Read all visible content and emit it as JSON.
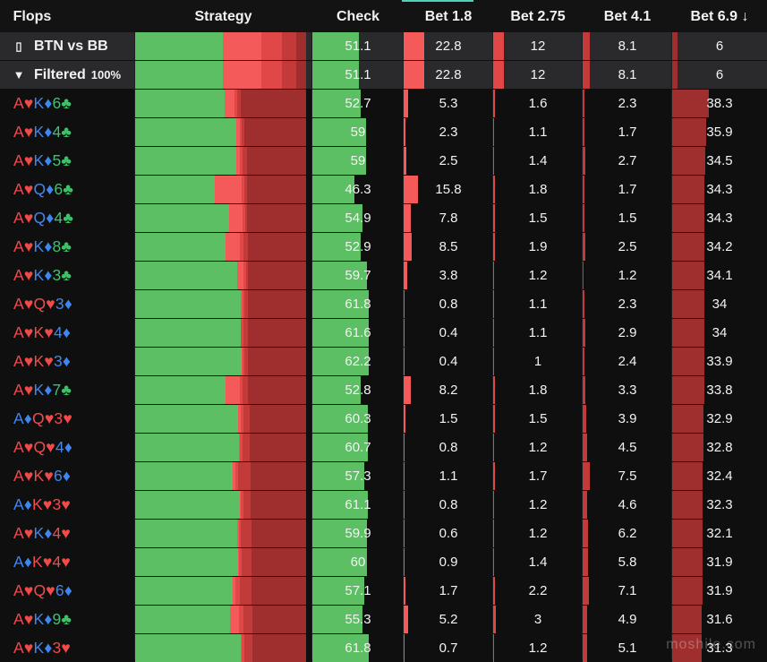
{
  "headers": {
    "flops": "Flops",
    "strategy": "Strategy",
    "check": "Check",
    "bet18": "Bet 1.8",
    "bet275": "Bet 2.75",
    "bet41": "Bet 4.1",
    "bet69": "Bet 6.9 ↓"
  },
  "summary": [
    {
      "label": "BTN vs BB",
      "pct": "",
      "icon": "bookmark-icon",
      "check": "51.1",
      "b18": "22.8",
      "b275": "12",
      "b41": "8.1",
      "b69": "6"
    },
    {
      "label": "Filtered",
      "pct": "100%",
      "icon": "filter-icon",
      "check": "51.1",
      "b18": "22.8",
      "b275": "12",
      "b41": "8.1",
      "b69": "6"
    }
  ],
  "rows": [
    {
      "cards": [
        [
          "A",
          "♥"
        ],
        [
          "K",
          "♦"
        ],
        [
          "6",
          "♣"
        ]
      ],
      "check": "52.7",
      "b18": "5.3",
      "b275": "1.6",
      "b41": "2.3",
      "b69": "38.3"
    },
    {
      "cards": [
        [
          "A",
          "♥"
        ],
        [
          "K",
          "♦"
        ],
        [
          "4",
          "♣"
        ]
      ],
      "check": "59",
      "b18": "2.3",
      "b275": "1.1",
      "b41": "1.7",
      "b69": "35.9"
    },
    {
      "cards": [
        [
          "A",
          "♥"
        ],
        [
          "K",
          "♦"
        ],
        [
          "5",
          "♣"
        ]
      ],
      "check": "59",
      "b18": "2.5",
      "b275": "1.4",
      "b41": "2.7",
      "b69": "34.5"
    },
    {
      "cards": [
        [
          "A",
          "♥"
        ],
        [
          "Q",
          "♦"
        ],
        [
          "6",
          "♣"
        ]
      ],
      "check": "46.3",
      "b18": "15.8",
      "b275": "1.8",
      "b41": "1.7",
      "b69": "34.3"
    },
    {
      "cards": [
        [
          "A",
          "♥"
        ],
        [
          "Q",
          "♦"
        ],
        [
          "4",
          "♣"
        ]
      ],
      "check": "54.9",
      "b18": "7.8",
      "b275": "1.5",
      "b41": "1.5",
      "b69": "34.3"
    },
    {
      "cards": [
        [
          "A",
          "♥"
        ],
        [
          "K",
          "♦"
        ],
        [
          "8",
          "♣"
        ]
      ],
      "check": "52.9",
      "b18": "8.5",
      "b275": "1.9",
      "b41": "2.5",
      "b69": "34.2"
    },
    {
      "cards": [
        [
          "A",
          "♥"
        ],
        [
          "K",
          "♦"
        ],
        [
          "3",
          "♣"
        ]
      ],
      "check": "59.7",
      "b18": "3.8",
      "b275": "1.2",
      "b41": "1.2",
      "b69": "34.1"
    },
    {
      "cards": [
        [
          "A",
          "♥"
        ],
        [
          "Q",
          "♥"
        ],
        [
          "3",
          "♦"
        ]
      ],
      "check": "61.8",
      "b18": "0.8",
      "b275": "1.1",
      "b41": "2.3",
      "b69": "34"
    },
    {
      "cards": [
        [
          "A",
          "♥"
        ],
        [
          "K",
          "♥"
        ],
        [
          "4",
          "♦"
        ]
      ],
      "check": "61.6",
      "b18": "0.4",
      "b275": "1.1",
      "b41": "2.9",
      "b69": "34"
    },
    {
      "cards": [
        [
          "A",
          "♥"
        ],
        [
          "K",
          "♥"
        ],
        [
          "3",
          "♦"
        ]
      ],
      "check": "62.2",
      "b18": "0.4",
      "b275": "1",
      "b41": "2.4",
      "b69": "33.9"
    },
    {
      "cards": [
        [
          "A",
          "♥"
        ],
        [
          "K",
          "♦"
        ],
        [
          "7",
          "♣"
        ]
      ],
      "check": "52.8",
      "b18": "8.2",
      "b275": "1.8",
      "b41": "3.3",
      "b69": "33.8"
    },
    {
      "cards": [
        [
          "A",
          "♦"
        ],
        [
          "Q",
          "♥"
        ],
        [
          "3",
          "♥"
        ]
      ],
      "check": "60.3",
      "b18": "1.5",
      "b275": "1.5",
      "b41": "3.9",
      "b69": "32.9"
    },
    {
      "cards": [
        [
          "A",
          "♥"
        ],
        [
          "Q",
          "♥"
        ],
        [
          "4",
          "♦"
        ]
      ],
      "check": "60.7",
      "b18": "0.8",
      "b275": "1.2",
      "b41": "4.5",
      "b69": "32.8"
    },
    {
      "cards": [
        [
          "A",
          "♥"
        ],
        [
          "K",
          "♥"
        ],
        [
          "6",
          "♦"
        ]
      ],
      "check": "57.3",
      "b18": "1.1",
      "b275": "1.7",
      "b41": "7.5",
      "b69": "32.4"
    },
    {
      "cards": [
        [
          "A",
          "♦"
        ],
        [
          "K",
          "♥"
        ],
        [
          "3",
          "♥"
        ]
      ],
      "check": "61.1",
      "b18": "0.8",
      "b275": "1.2",
      "b41": "4.6",
      "b69": "32.3"
    },
    {
      "cards": [
        [
          "A",
          "♥"
        ],
        [
          "K",
          "♦"
        ],
        [
          "4",
          "♥"
        ]
      ],
      "check": "59.9",
      "b18": "0.6",
      "b275": "1.2",
      "b41": "6.2",
      "b69": "32.1"
    },
    {
      "cards": [
        [
          "A",
          "♦"
        ],
        [
          "K",
          "♥"
        ],
        [
          "4",
          "♥"
        ]
      ],
      "check": "60",
      "b18": "0.9",
      "b275": "1.4",
      "b41": "5.8",
      "b69": "31.9"
    },
    {
      "cards": [
        [
          "A",
          "♥"
        ],
        [
          "Q",
          "♥"
        ],
        [
          "6",
          "♦"
        ]
      ],
      "check": "57.1",
      "b18": "1.7",
      "b275": "2.2",
      "b41": "7.1",
      "b69": "31.9"
    },
    {
      "cards": [
        [
          "A",
          "♥"
        ],
        [
          "K",
          "♦"
        ],
        [
          "9",
          "♣"
        ]
      ],
      "check": "55.3",
      "b18": "5.2",
      "b275": "3",
      "b41": "4.9",
      "b69": "31.6"
    },
    {
      "cards": [
        [
          "A",
          "♥"
        ],
        [
          "K",
          "♦"
        ],
        [
          "3",
          "♥"
        ]
      ],
      "check": "61.8",
      "b18": "0.7",
      "b275": "1.2",
      "b41": "5.1",
      "b69": "31.3"
    }
  ],
  "watermark": "moshile.com",
  "colors": {
    "check": "#5cbf63",
    "bet18": "#f45a5a",
    "bet275": "#e04848",
    "bet41": "#c23a3a",
    "bet69": "#9f2f2f",
    "heart": "#f04a4a",
    "diamond": "#3f86ef",
    "club": "#3fc16a"
  }
}
